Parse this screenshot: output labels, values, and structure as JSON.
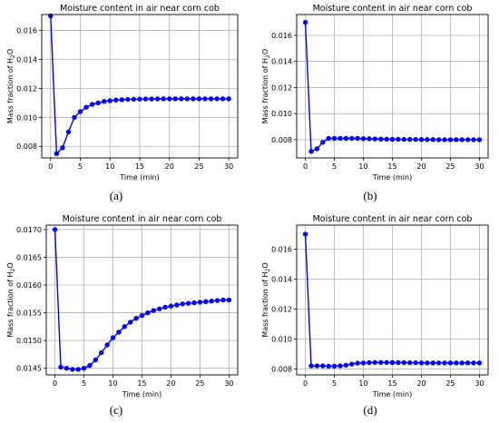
{
  "chart_data": [
    {
      "type": "line",
      "caption": "(a)",
      "title": "Moisture content in air near corn cob",
      "xlabel": "Time (min)",
      "ylabel": "Mass fraction of H",
      "ylabel_sub": "2",
      "ylabel_end": "O",
      "xlim": [
        -1.5,
        31.5
      ],
      "ylim": [
        0.0072,
        0.0171
      ],
      "xticks": [
        0,
        5,
        10,
        15,
        20,
        25,
        30
      ],
      "xtick_labels": [
        "0",
        "5",
        "10",
        "15",
        "20",
        "25",
        "30"
      ],
      "yticks": [
        0.008,
        0.01,
        0.012,
        0.014,
        0.016
      ],
      "ytick_labels": [
        "0.008",
        "0.010",
        "0.012",
        "0.014",
        "0.016"
      ],
      "grid": true,
      "color": "#0000ff",
      "x": [
        0,
        1,
        2,
        3,
        4,
        5,
        6,
        7,
        8,
        9,
        10,
        11,
        12,
        13,
        14,
        15,
        16,
        17,
        18,
        19,
        20,
        21,
        22,
        23,
        24,
        25,
        26,
        27,
        28,
        29,
        30
      ],
      "y": [
        0.017,
        0.0075,
        0.0079,
        0.009,
        0.01,
        0.0104,
        0.0107,
        0.0109,
        0.011,
        0.0111,
        0.01115,
        0.0112,
        0.01122,
        0.01124,
        0.01125,
        0.01126,
        0.01127,
        0.01127,
        0.01128,
        0.01128,
        0.01128,
        0.01128,
        0.01128,
        0.01128,
        0.01128,
        0.01128,
        0.01128,
        0.01128,
        0.01128,
        0.01128,
        0.01128
      ]
    },
    {
      "type": "line",
      "caption": "(b)",
      "title": "Moisture content in air near corn cob",
      "xlabel": "Time (min)",
      "ylabel": "Mass fraction of H",
      "ylabel_sub": "2",
      "ylabel_end": "O",
      "xlim": [
        -1.5,
        31.5
      ],
      "ylim": [
        0.0066,
        0.0176
      ],
      "xticks": [
        0,
        5,
        10,
        15,
        20,
        25,
        30
      ],
      "xtick_labels": [
        "0",
        "5",
        "10",
        "15",
        "20",
        "25",
        "30"
      ],
      "yticks": [
        0.008,
        0.01,
        0.012,
        0.014,
        0.016
      ],
      "ytick_labels": [
        "0.008",
        "0.010",
        "0.012",
        "0.014",
        "0.016"
      ],
      "grid": true,
      "color": "#0000ff",
      "x": [
        0,
        1,
        2,
        3,
        4,
        5,
        6,
        7,
        8,
        9,
        10,
        11,
        12,
        13,
        14,
        15,
        16,
        17,
        18,
        19,
        20,
        21,
        22,
        23,
        24,
        25,
        26,
        27,
        28,
        29,
        30
      ],
      "y": [
        0.017,
        0.0071,
        0.0073,
        0.0078,
        0.0081,
        0.0081,
        0.0081,
        0.0081,
        0.0081,
        0.0081,
        0.00808,
        0.00807,
        0.00806,
        0.00805,
        0.00804,
        0.00803,
        0.00803,
        0.00802,
        0.00802,
        0.00802,
        0.00801,
        0.00801,
        0.00801,
        0.008,
        0.008,
        0.008,
        0.008,
        0.008,
        0.008,
        0.008,
        0.008
      ]
    },
    {
      "type": "line",
      "caption": "(c)",
      "title": "Moisture content in air near corn cob",
      "xlabel": "Time (min)",
      "ylabel": "Mass fraction of H",
      "ylabel_sub": "2",
      "ylabel_end": "O",
      "xlim": [
        -1.5,
        31.5
      ],
      "ylim": [
        0.01438,
        0.01708
      ],
      "xticks": [
        0,
        5,
        10,
        15,
        20,
        25,
        30
      ],
      "xtick_labels": [
        "0",
        "5",
        "10",
        "15",
        "20",
        "25",
        "30"
      ],
      "yticks": [
        0.0145,
        0.015,
        0.0155,
        0.016,
        0.0165,
        0.017
      ],
      "ytick_labels": [
        "0.0145",
        "0.0150",
        "0.0155",
        "0.0160",
        "0.0165",
        "0.0170"
      ],
      "grid": true,
      "color": "#0000ff",
      "x": [
        0,
        1,
        2,
        3,
        4,
        5,
        6,
        7,
        8,
        9,
        10,
        11,
        12,
        13,
        14,
        15,
        16,
        17,
        18,
        19,
        20,
        21,
        22,
        23,
        24,
        25,
        26,
        27,
        28,
        29,
        30
      ],
      "y": [
        0.017,
        0.01452,
        0.0145,
        0.01448,
        0.01448,
        0.0145,
        0.01455,
        0.01465,
        0.01478,
        0.01492,
        0.01505,
        0.01515,
        0.01525,
        0.01533,
        0.0154,
        0.01545,
        0.0155,
        0.01554,
        0.01557,
        0.0156,
        0.01562,
        0.01564,
        0.01566,
        0.01567,
        0.01568,
        0.01569,
        0.0157,
        0.01571,
        0.01572,
        0.01573,
        0.01573
      ]
    },
    {
      "type": "line",
      "caption": "(d)",
      "title": "Moisture content in air near corn cob",
      "xlabel": "Time (min)",
      "ylabel": "Mass fraction of H",
      "ylabel_sub": "2",
      "ylabel_end": "O",
      "xlim": [
        -1.5,
        31.5
      ],
      "ylim": [
        0.0076,
        0.0176
      ],
      "xticks": [
        0,
        5,
        10,
        15,
        20,
        25,
        30
      ],
      "xtick_labels": [
        "0",
        "5",
        "10",
        "15",
        "20",
        "25",
        "30"
      ],
      "yticks": [
        0.008,
        0.01,
        0.012,
        0.014,
        0.016
      ],
      "ytick_labels": [
        "0.008",
        "0.010",
        "0.012",
        "0.014",
        "0.016"
      ],
      "grid": true,
      "color": "#0000ff",
      "x": [
        0,
        1,
        2,
        3,
        4,
        5,
        6,
        7,
        8,
        9,
        10,
        11,
        12,
        13,
        14,
        15,
        16,
        17,
        18,
        19,
        20,
        21,
        22,
        23,
        24,
        25,
        26,
        27,
        28,
        29,
        30
      ],
      "y": [
        0.017,
        0.0082,
        0.0082,
        0.0082,
        0.00818,
        0.00818,
        0.0082,
        0.00825,
        0.00832,
        0.00838,
        0.0084,
        0.00842,
        0.00843,
        0.00843,
        0.00843,
        0.00842,
        0.00842,
        0.00842,
        0.00841,
        0.00841,
        0.0084,
        0.0084,
        0.0084,
        0.0084,
        0.0084,
        0.0084,
        0.0084,
        0.0084,
        0.0084,
        0.0084,
        0.0084
      ]
    }
  ]
}
